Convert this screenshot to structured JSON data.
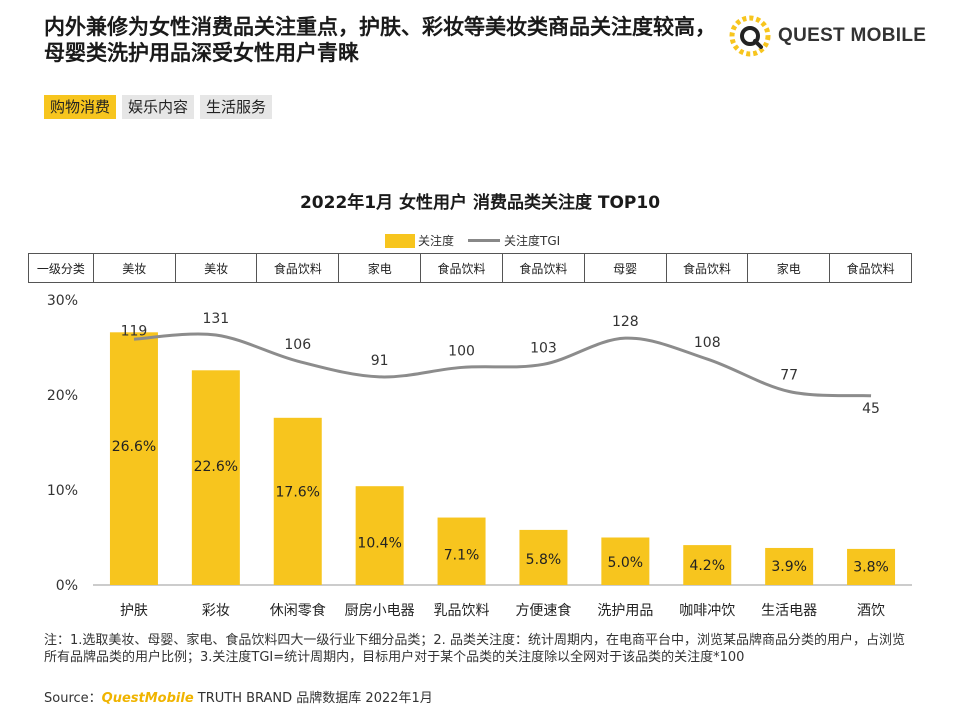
{
  "header": {
    "title": "内外兼修为女性消费品关注重点，护肤、彩妆等美妆类商品关注度较高，母婴类洗护用品深受女性用户青睐",
    "logo_text": "QUEST MOBILE"
  },
  "tabs": [
    {
      "label": "购物消费",
      "active": true
    },
    {
      "label": "娱乐内容",
      "active": false
    },
    {
      "label": "生活服务",
      "active": false
    }
  ],
  "colors": {
    "bar": "#f7c51e",
    "bar_light": "#ffd54a",
    "line": "#8c8c8c",
    "accent": "#f7c51e"
  },
  "category_row": {
    "header": "一级分类",
    "values": [
      "美妆",
      "美妆",
      "食品饮料",
      "家电",
      "食品饮料",
      "食品饮料",
      "母婴",
      "食品饮料",
      "家电",
      "食品饮料"
    ]
  },
  "chart_data": {
    "type": "bar",
    "title": "2022年1月 女性用户 消费品类关注度 TOP10",
    "legend": [
      "关注度",
      "关注度TGI"
    ],
    "categories": [
      "护肤",
      "彩妆",
      "休闲零食",
      "厨房小电器",
      "乳品饮料",
      "方便速食",
      "洗护用品",
      "咖啡冲饮",
      "生活电器",
      "酒饮"
    ],
    "series": [
      {
        "name": "关注度",
        "type": "bar",
        "values": [
          26.6,
          22.6,
          17.6,
          10.4,
          7.1,
          5.8,
          5.0,
          4.2,
          3.9,
          3.8
        ],
        "labels": [
          "26.6%",
          "22.6%",
          "17.6%",
          "10.4%",
          "7.1%",
          "5.8%",
          "5.0%",
          "4.2%",
          "3.9%",
          "3.8%"
        ]
      },
      {
        "name": "关注度TGI",
        "type": "line",
        "values": [
          119,
          131,
          106,
          91,
          100,
          103,
          128,
          108,
          77,
          45
        ],
        "labels": [
          "119",
          "131",
          "106",
          "91",
          "100",
          "103",
          "128",
          "108",
          "77",
          "45"
        ]
      }
    ],
    "yticks": [
      "0%",
      "10%",
      "20%",
      "30%"
    ],
    "ylim": [
      0,
      30
    ],
    "tgi_range": [
      45,
      131
    ],
    "tgi_line_ends": [
      127,
      73
    ],
    "xlabel": "",
    "ylabel": ""
  },
  "notes": "注：1.选取美妆、母婴、家电、食品饮料四大一级行业下细分品类；2. 品类关注度：统计周期内，在电商平台中，浏览某品牌商品分类的用户，占浏览所有品牌品类的用户比例；3.关注度TGI=统计周期内，目标用户对于某个品类的关注度除以全网对于该品类的关注度*100",
  "source": {
    "prefix": "Source：",
    "brand": "QuestMobile",
    "rest": " TRUTH BRAND 品牌数据库 2022年1月"
  }
}
